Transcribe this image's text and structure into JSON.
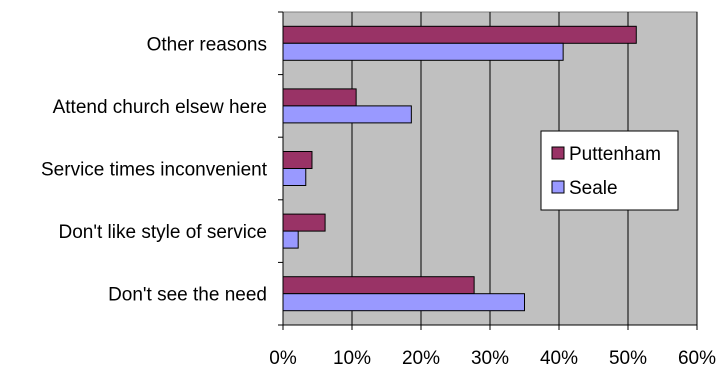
{
  "chart_data": {
    "type": "bar",
    "orientation": "horizontal",
    "categories": [
      "Other reasons",
      "Attend church elsew here",
      "Service times inconvenient",
      "Don't like style of service",
      "Don't see the need"
    ],
    "series": [
      {
        "name": "Puttenham",
        "color": "#993366",
        "values": [
          51.2,
          10.6,
          4.2,
          6.1,
          27.7
        ]
      },
      {
        "name": "Seale",
        "color": "#9999FF",
        "values": [
          40.6,
          18.6,
          3.3,
          2.2,
          35.0
        ]
      }
    ],
    "xticks": [
      "0%",
      "10%",
      "20%",
      "30%",
      "40%",
      "50%",
      "60%"
    ],
    "xlim": [
      0,
      60
    ],
    "grid": "vertical",
    "plot_background": "#C0C0C0",
    "legend_position": "right"
  }
}
